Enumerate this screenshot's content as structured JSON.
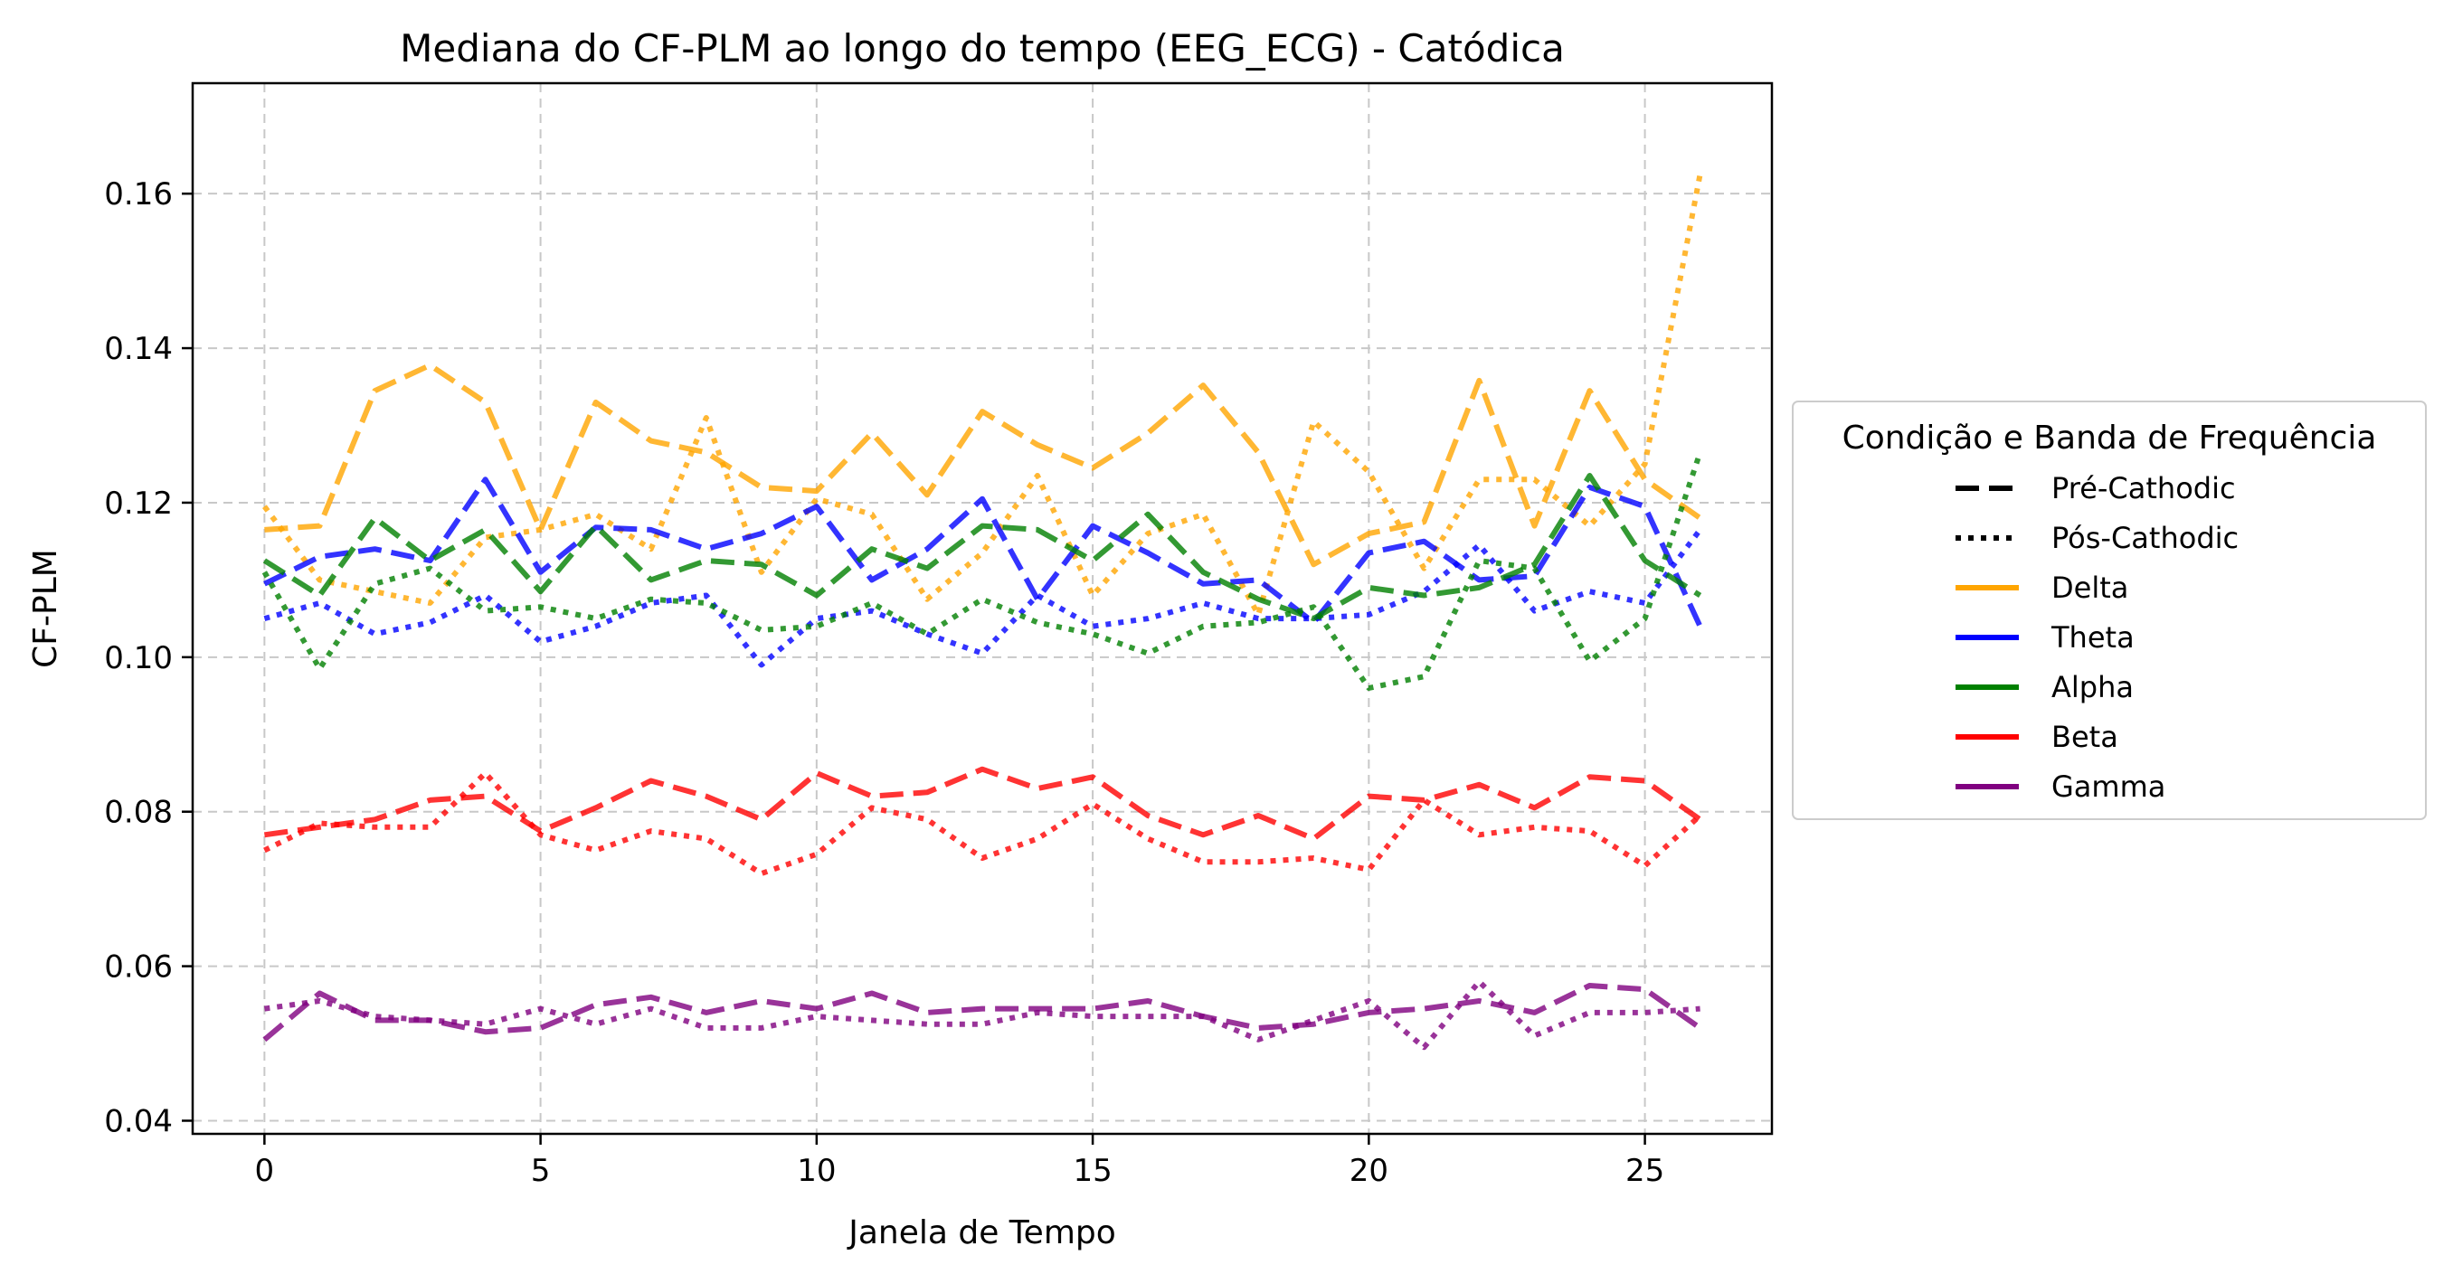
{
  "chart_data": {
    "type": "line",
    "title": "Mediana do CF-PLM ao longo do tempo (EEG_ECG) - Catódica",
    "xlabel": "Janela de Tempo",
    "ylabel": "CF-PLM",
    "xlim": [
      -1.3,
      27.3
    ],
    "ylim": [
      0.0383,
      0.1743
    ],
    "xticks": [
      0,
      5,
      10,
      15,
      20,
      25
    ],
    "yticks": [
      0.04,
      0.06,
      0.08,
      0.1,
      0.12,
      0.14,
      0.16
    ],
    "ytick_labels": [
      "0.04",
      "0.06",
      "0.08",
      "0.10",
      "0.12",
      "0.14",
      "0.16"
    ],
    "grid": true,
    "legend": {
      "title": "Condição e Banda de Frequência",
      "placement": "outside right",
      "entries": [
        {
          "label": "Pré-Cathodic",
          "style": "dashed",
          "color": "#000000"
        },
        {
          "label": "Pós-Cathodic",
          "style": "dotted",
          "color": "#000000"
        },
        {
          "label": "Delta",
          "style": "solid",
          "color": "#ffa500"
        },
        {
          "label": "Theta",
          "style": "solid",
          "color": "#0000ff"
        },
        {
          "label": "Alpha",
          "style": "solid",
          "color": "#008000"
        },
        {
          "label": "Beta",
          "style": "solid",
          "color": "#ff0000"
        },
        {
          "label": "Gamma",
          "style": "solid",
          "color": "#800080"
        }
      ]
    },
    "x": [
      0,
      1,
      2,
      3,
      4,
      5,
      6,
      7,
      8,
      9,
      10,
      11,
      12,
      13,
      14,
      15,
      16,
      17,
      18,
      19,
      20,
      21,
      22,
      23,
      24,
      25,
      26
    ],
    "series": [
      {
        "name": "Delta",
        "condition": "Pré-Cathodic",
        "style": "dashed",
        "color": "#ffa500",
        "values": [
          0.1165,
          0.117,
          0.1345,
          0.1378,
          0.133,
          0.1165,
          0.133,
          0.128,
          0.1265,
          0.122,
          0.1215,
          0.129,
          0.121,
          0.1318,
          0.1275,
          0.1245,
          0.129,
          0.1352,
          0.1265,
          0.112,
          0.116,
          0.1175,
          0.1358,
          0.117,
          0.1345,
          0.123,
          0.118
        ]
      },
      {
        "name": "Delta",
        "condition": "Pós-Cathodic",
        "style": "dotted",
        "color": "#ffa500",
        "values": [
          0.1195,
          0.11,
          0.1085,
          0.107,
          0.1155,
          0.1165,
          0.1185,
          0.114,
          0.131,
          0.111,
          0.1205,
          0.1185,
          0.1075,
          0.1135,
          0.1235,
          0.108,
          0.116,
          0.1185,
          0.1055,
          0.1305,
          0.124,
          0.1115,
          0.123,
          0.123,
          0.117,
          0.125,
          0.1625
        ]
      },
      {
        "name": "Theta",
        "condition": "Pré-Cathodic",
        "style": "dashed",
        "color": "#0000ff",
        "values": [
          0.1095,
          0.113,
          0.114,
          0.1125,
          0.123,
          0.111,
          0.1168,
          0.1165,
          0.114,
          0.116,
          0.1195,
          0.11,
          0.114,
          0.1205,
          0.1075,
          0.117,
          0.1135,
          0.1095,
          0.11,
          0.1045,
          0.1135,
          0.115,
          0.11,
          0.1105,
          0.122,
          0.1195,
          0.104
        ]
      },
      {
        "name": "Theta",
        "condition": "Pós-Cathodic",
        "style": "dotted",
        "color": "#0000ff",
        "values": [
          0.105,
          0.107,
          0.103,
          0.1045,
          0.108,
          0.102,
          0.104,
          0.107,
          0.108,
          0.099,
          0.105,
          0.106,
          0.103,
          0.1005,
          0.108,
          0.104,
          0.105,
          0.107,
          0.105,
          0.105,
          0.1055,
          0.1085,
          0.1145,
          0.106,
          0.1085,
          0.107,
          0.1165
        ]
      },
      {
        "name": "Alpha",
        "condition": "Pré-Cathodic",
        "style": "dashed",
        "color": "#008000",
        "values": [
          0.1125,
          0.108,
          0.118,
          0.1125,
          0.1165,
          0.1085,
          0.117,
          0.11,
          0.1125,
          0.112,
          0.108,
          0.114,
          0.1115,
          0.117,
          0.1165,
          0.1125,
          0.1185,
          0.111,
          0.1075,
          0.105,
          0.109,
          0.108,
          0.109,
          0.112,
          0.1235,
          0.1125,
          0.108
        ]
      },
      {
        "name": "Alpha",
        "condition": "Pós-Cathodic",
        "style": "dotted",
        "color": "#008000",
        "values": [
          0.111,
          0.0985,
          0.1095,
          0.1115,
          0.106,
          0.1065,
          0.105,
          0.1075,
          0.107,
          0.1035,
          0.104,
          0.107,
          0.103,
          0.1075,
          0.1045,
          0.103,
          0.1005,
          0.104,
          0.1045,
          0.1065,
          0.096,
          0.0975,
          0.1125,
          0.1115,
          0.0995,
          0.105,
          0.1265
        ]
      },
      {
        "name": "Beta",
        "condition": "Pré-Cathodic",
        "style": "dashed",
        "color": "#ff0000",
        "values": [
          0.077,
          0.078,
          0.079,
          0.0815,
          0.082,
          0.0775,
          0.0805,
          0.084,
          0.082,
          0.079,
          0.085,
          0.082,
          0.0825,
          0.0855,
          0.083,
          0.0845,
          0.0795,
          0.077,
          0.0795,
          0.0765,
          0.082,
          0.0815,
          0.0835,
          0.0805,
          0.0845,
          0.084,
          0.079
        ]
      },
      {
        "name": "Beta",
        "condition": "Pós-Cathodic",
        "style": "dotted",
        "color": "#ff0000",
        "values": [
          0.075,
          0.0785,
          0.078,
          0.078,
          0.085,
          0.077,
          0.075,
          0.0775,
          0.0765,
          0.072,
          0.0745,
          0.0805,
          0.079,
          0.074,
          0.0765,
          0.081,
          0.0765,
          0.0735,
          0.0735,
          0.074,
          0.0725,
          0.0815,
          0.077,
          0.078,
          0.0775,
          0.073,
          0.0795
        ]
      },
      {
        "name": "Gamma",
        "condition": "Pré-Cathodic",
        "style": "dashed",
        "color": "#800080",
        "values": [
          0.0505,
          0.0565,
          0.053,
          0.053,
          0.0515,
          0.052,
          0.055,
          0.056,
          0.054,
          0.0555,
          0.0545,
          0.0565,
          0.054,
          0.0545,
          0.0545,
          0.0545,
          0.0555,
          0.0535,
          0.052,
          0.0525,
          0.054,
          0.0545,
          0.0555,
          0.054,
          0.0575,
          0.057,
          0.052
        ]
      },
      {
        "name": "Gamma",
        "condition": "Pós-Cathodic",
        "style": "dotted",
        "color": "#800080",
        "values": [
          0.0545,
          0.0555,
          0.0535,
          0.053,
          0.0525,
          0.0545,
          0.0525,
          0.0545,
          0.052,
          0.052,
          0.0535,
          0.053,
          0.0525,
          0.0525,
          0.054,
          0.0535,
          0.0535,
          0.0535,
          0.0505,
          0.053,
          0.0555,
          0.0495,
          0.058,
          0.051,
          0.054,
          0.054,
          0.0545
        ]
      }
    ]
  }
}
